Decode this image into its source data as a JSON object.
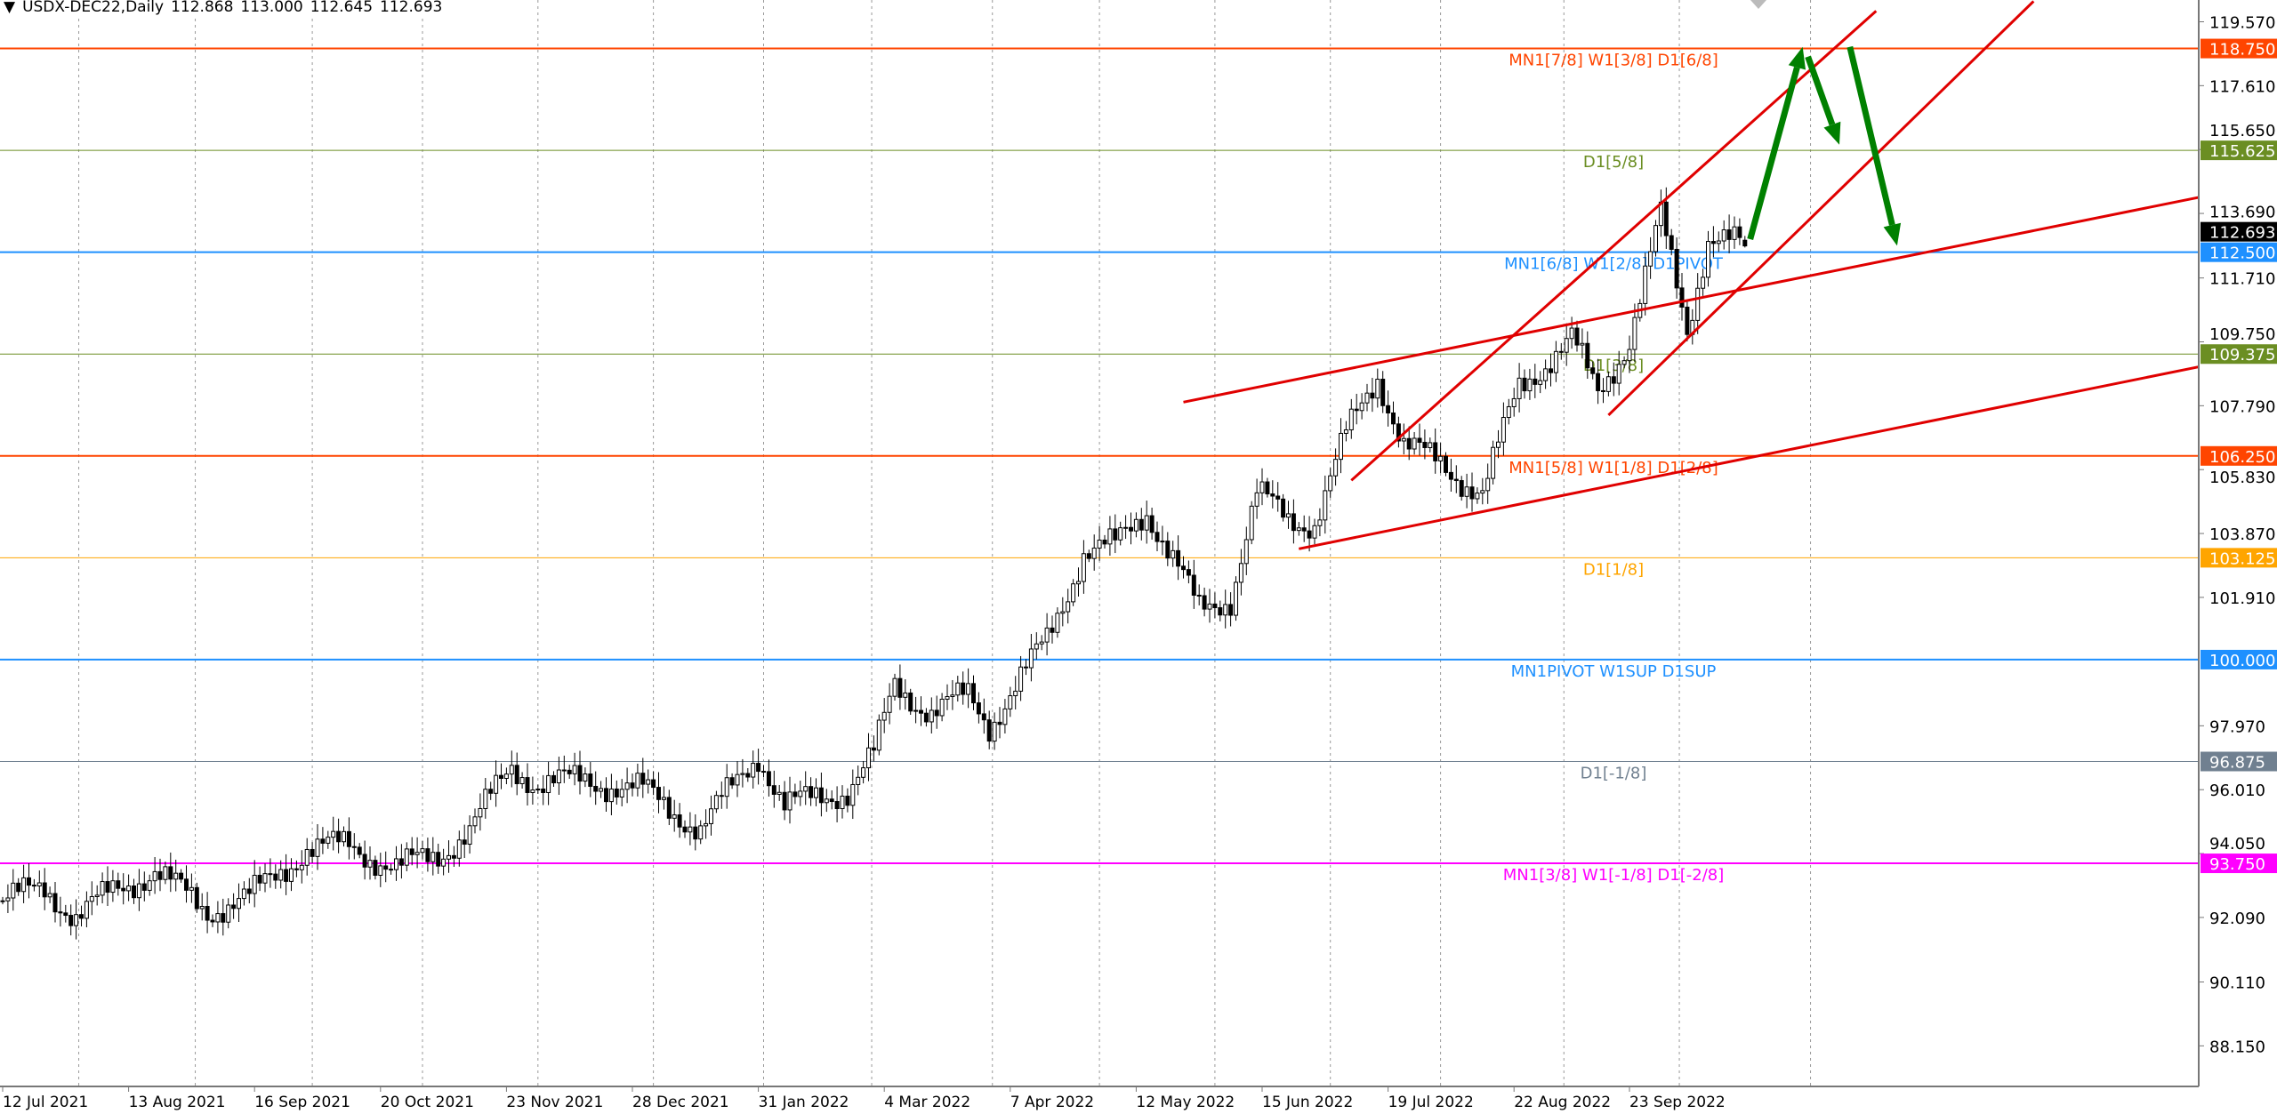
{
  "header": {
    "symbol": "USDX-DEC22,Daily",
    "open": "112.868",
    "high": "113.000",
    "low": "112.645",
    "close": "112.693"
  },
  "chart_data": {
    "type": "candlestick",
    "title": "USDX-DEC22,Daily",
    "ylim": [
      86.9,
      120.2
    ],
    "grid": "vertical dotted",
    "y_ticks": [
      "119.570",
      "117.610",
      "115.650",
      "113.690",
      "111.710",
      "109.750",
      "107.790",
      "105.830",
      "103.870",
      "101.910",
      "97.970",
      "96.010",
      "94.050",
      "92.090",
      "90.110",
      "88.150"
    ],
    "x_ticks": [
      {
        "day": 0,
        "label": "12 Jul 2021"
      },
      {
        "day": 24,
        "label": "13 Aug 2021"
      },
      {
        "day": 48,
        "label": "16 Sep 2021"
      },
      {
        "day": 72,
        "label": "20 Oct 2021"
      },
      {
        "day": 96,
        "label": "23 Nov 2021"
      },
      {
        "day": 120,
        "label": "28 Dec 2021"
      },
      {
        "day": 144,
        "label": "31 Jan 2022"
      },
      {
        "day": 168,
        "label": "4 Mar 2022"
      },
      {
        "day": 192,
        "label": "7 Apr 2022"
      },
      {
        "day": 216,
        "label": "12 May 2022"
      },
      {
        "day": 240,
        "label": "15 Jun 2022"
      },
      {
        "day": 264,
        "label": "19 Jul 2022"
      },
      {
        "day": 288,
        "label": "22 Aug 2022"
      },
      {
        "day": 310,
        "label": "23 Sep 2022"
      }
    ],
    "grid_days": [
      14.5,
      36.7,
      59,
      80,
      102,
      124,
      145,
      165.6,
      188.6,
      209,
      231,
      253,
      274,
      297.5,
      319.5,
      344.5
    ],
    "close_anchors": [
      [
        0,
        92.6
      ],
      [
        8,
        93.0
      ],
      [
        14,
        92.1
      ],
      [
        22,
        93.0
      ],
      [
        29,
        93.5
      ],
      [
        39,
        92.3
      ],
      [
        47,
        92.7
      ],
      [
        58,
        94.2
      ],
      [
        66,
        94.3
      ],
      [
        75,
        93.6
      ],
      [
        83,
        94.0
      ],
      [
        89,
        94.8
      ],
      [
        97,
        96.7
      ],
      [
        102,
        96.2
      ],
      [
        111,
        96.3
      ],
      [
        122,
        96.0
      ],
      [
        133,
        94.8
      ],
      [
        144,
        97.1
      ],
      [
        149,
        95.5
      ],
      [
        161,
        96.0
      ],
      [
        166,
        97.1
      ],
      [
        170,
        99.2
      ],
      [
        177,
        98.4
      ],
      [
        184,
        98.9
      ],
      [
        188,
        98.0
      ],
      [
        199,
        100.6
      ],
      [
        206,
        103.3
      ],
      [
        212,
        103.5
      ],
      [
        218,
        104.6
      ],
      [
        223,
        103.1
      ],
      [
        228,
        101.5
      ],
      [
        234,
        101.9
      ],
      [
        239,
        105.1
      ],
      [
        245,
        104.3
      ],
      [
        250,
        104.2
      ],
      [
        256,
        106.9
      ],
      [
        262,
        108.7
      ],
      [
        267,
        106.6
      ],
      [
        274,
        106.0
      ],
      [
        282,
        105.1
      ],
      [
        289,
        108.4
      ],
      [
        299,
        109.8
      ],
      [
        304,
        108.2
      ],
      [
        310,
        109.8
      ],
      [
        316,
        113.6
      ],
      [
        321,
        110.2
      ],
      [
        325,
        112.9
      ],
      [
        332,
        112.693
      ]
    ],
    "last_candle": {
      "open": 112.868,
      "high": 113.0,
      "low": 112.645,
      "close": 112.693
    },
    "current_price": {
      "value": "112.693",
      "color": "#000000"
    },
    "levels": [
      {
        "price": 118.75,
        "value": "118.750",
        "label": "MN1[7/8] W1[3/8] D1[6/8]",
        "color": "#FF4500"
      },
      {
        "price": 115.625,
        "value": "115.625",
        "label": "D1[5/8]",
        "color": "#6B8E23"
      },
      {
        "price": 112.5,
        "value": "112.500",
        "label": "MN1[6/8] W1[2/8] D1PIVOT",
        "color": "#1E90FF"
      },
      {
        "price": 109.375,
        "value": "109.375",
        "label": "D1[3/8]",
        "color": "#6B8E23"
      },
      {
        "price": 106.25,
        "value": "106.250",
        "label": "MN1[5/8] W1[1/8] D1[2/8]",
        "color": "#FF4500"
      },
      {
        "price": 103.125,
        "value": "103.125",
        "label": "D1[1/8]",
        "color": "#FFA500"
      },
      {
        "price": 100.0,
        "value": "100.000",
        "label": "MN1PIVOT W1SUP D1SUP",
        "color": "#1E90FF"
      },
      {
        "price": 96.875,
        "value": "96.875",
        "label": "D1[-1/8]",
        "color": "#708090"
      },
      {
        "price": 93.75,
        "value": "93.750",
        "label": "MN1[3/8] W1[-1/8] D1[-2/8]",
        "color": "#FF00FF"
      }
    ],
    "trendlines": [
      {
        "name": "channel-upper-line",
        "from": [
          225,
          107.9
        ],
        "to": [
          419,
          114.2
        ],
        "color": "#E00000"
      },
      {
        "name": "channel-lower-line",
        "from": [
          247,
          103.4
        ],
        "to": [
          419,
          109.0
        ],
        "color": "#E00000"
      },
      {
        "name": "steep-channel-upper-line",
        "from": [
          257,
          105.5
        ],
        "to": [
          357,
          119.9
        ],
        "color": "#E00000"
      },
      {
        "name": "steep-channel-lower-line",
        "from": [
          306,
          107.5
        ],
        "to": [
          387,
          120.2
        ],
        "color": "#E00000"
      }
    ],
    "arrows": [
      {
        "from": [
          333,
          112.9
        ],
        "to": [
          343,
          118.8
        ],
        "color": "#008000"
      },
      {
        "from": [
          344,
          118.5
        ],
        "to": [
          350,
          115.8
        ],
        "color": "#008000"
      },
      {
        "from": [
          352,
          118.8
        ],
        "to": [
          361,
          112.7
        ],
        "color": "#008000"
      }
    ]
  }
}
